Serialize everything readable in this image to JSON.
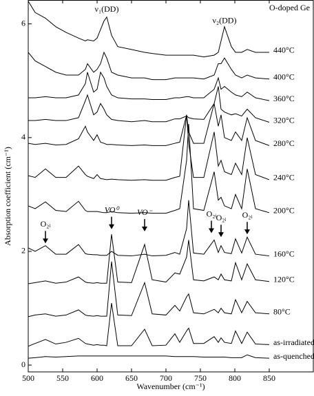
{
  "chart_data": {
    "type": "line",
    "title": "O-doped Ge",
    "x_label": "Wavenumber (cm⁻¹)",
    "y_label": "Absorption coefficient (cm⁻¹)",
    "xlim": [
      500,
      914
    ],
    "ylim": [
      -0.12,
      6.42
    ],
    "xticks": [
      500,
      550,
      600,
      650,
      700,
      750,
      800,
      850
    ],
    "yticks": [
      0,
      2,
      4,
      6
    ],
    "grid": false,
    "color": "#000000",
    "x": [
      500,
      510,
      525,
      540,
      555,
      573,
      583,
      586,
      595,
      600,
      605,
      610,
      614,
      621,
      630,
      650,
      669,
      680,
      700,
      713,
      720,
      730,
      733,
      740,
      755,
      770,
      776,
      780,
      785,
      795,
      801,
      810,
      818,
      830,
      850
    ],
    "series": [
      {
        "name": "as-quenched",
        "values": [
          0.12,
          0.13,
          0.15,
          0.14,
          0.15,
          0.16,
          0.16,
          0.16,
          0.16,
          0.16,
          0.16,
          0.16,
          0.16,
          0.16,
          0.16,
          0.16,
          0.16,
          0.16,
          0.16,
          0.15,
          0.15,
          0.15,
          0.15,
          0.15,
          0.14,
          0.14,
          0.14,
          0.14,
          0.14,
          0.13,
          0.13,
          0.13,
          0.18,
          0.13,
          0.12
        ]
      },
      {
        "name": "as-irradiated",
        "values": [
          0.33,
          0.38,
          0.45,
          0.37,
          0.4,
          0.47,
          0.38,
          0.37,
          0.35,
          0.36,
          0.35,
          0.35,
          0.34,
          1.09,
          0.34,
          0.34,
          0.63,
          0.34,
          0.35,
          0.55,
          0.4,
          0.6,
          0.65,
          0.38,
          0.38,
          0.5,
          0.4,
          0.48,
          0.4,
          0.38,
          0.6,
          0.38,
          0.58,
          0.37,
          0.36
        ]
      },
      {
        "name": "80°C",
        "values": [
          0.85,
          0.88,
          0.9,
          0.86,
          0.88,
          0.97,
          0.88,
          0.87,
          0.86,
          0.87,
          0.86,
          0.86,
          0.86,
          1.82,
          0.88,
          0.87,
          1.45,
          0.9,
          0.88,
          1.05,
          0.95,
          1.2,
          1.25,
          0.92,
          0.9,
          0.98,
          0.92,
          1.0,
          0.92,
          0.9,
          1.15,
          0.92,
          1.12,
          0.92,
          0.9
        ]
      },
      {
        "name": "120°C",
        "values": [
          1.43,
          1.45,
          1.48,
          1.44,
          1.46,
          1.55,
          1.46,
          1.45,
          1.44,
          1.45,
          1.44,
          1.44,
          1.44,
          2.3,
          1.46,
          1.45,
          2.12,
          1.5,
          1.46,
          1.62,
          1.6,
          1.9,
          2.2,
          1.5,
          1.48,
          1.55,
          1.5,
          1.6,
          1.5,
          1.48,
          1.8,
          1.5,
          1.78,
          1.5,
          1.47
        ]
      },
      {
        "name": "160°C",
        "values": [
          2.06,
          2.0,
          2.1,
          1.95,
          1.95,
          2.12,
          1.96,
          1.95,
          1.94,
          1.94,
          1.93,
          1.93,
          1.93,
          2.0,
          1.93,
          1.92,
          1.95,
          1.92,
          1.93,
          1.98,
          1.95,
          2.4,
          2.9,
          1.97,
          1.95,
          2.2,
          1.98,
          2.1,
          1.98,
          1.96,
          2.22,
          1.97,
          2.25,
          1.95,
          1.92
        ]
      },
      {
        "name": "200°C",
        "values": [
          2.8,
          2.75,
          2.87,
          2.72,
          2.7,
          2.88,
          2.72,
          2.7,
          2.7,
          2.7,
          2.69,
          2.68,
          2.68,
          2.7,
          2.68,
          2.67,
          2.68,
          2.67,
          2.67,
          2.72,
          2.75,
          3.6,
          4.24,
          2.75,
          2.72,
          3.4,
          2.9,
          2.95,
          2.8,
          2.75,
          3.0,
          2.75,
          3.45,
          2.75,
          2.68
        ]
      },
      {
        "name": "240°C",
        "values": [
          3.33,
          3.3,
          3.45,
          3.3,
          3.3,
          3.5,
          3.35,
          3.32,
          3.28,
          3.35,
          3.28,
          3.27,
          3.26,
          3.27,
          3.26,
          3.25,
          3.26,
          3.25,
          3.25,
          3.3,
          3.32,
          4.4,
          3.9,
          3.3,
          3.3,
          4.1,
          3.5,
          3.6,
          3.4,
          3.35,
          3.55,
          3.35,
          4.0,
          3.35,
          3.26
        ]
      },
      {
        "name": "280°C",
        "values": [
          3.9,
          3.88,
          3.9,
          3.87,
          3.88,
          3.98,
          4.2,
          4.1,
          3.95,
          4.05,
          3.92,
          3.9,
          3.88,
          3.88,
          3.87,
          3.86,
          3.87,
          3.86,
          3.86,
          3.9,
          3.92,
          4.4,
          4.1,
          3.9,
          3.9,
          4.6,
          4.2,
          4.4,
          4.0,
          3.95,
          4.1,
          3.95,
          4.35,
          3.95,
          3.86
        ]
      },
      {
        "name": "320°C",
        "values": [
          4.3,
          4.3,
          4.32,
          4.3,
          4.3,
          4.35,
          4.65,
          4.75,
          4.4,
          4.45,
          4.6,
          4.5,
          4.4,
          4.32,
          4.3,
          4.28,
          4.3,
          4.28,
          4.28,
          4.33,
          4.33,
          4.38,
          4.35,
          4.33,
          4.32,
          4.6,
          4.9,
          4.5,
          4.45,
          4.4,
          4.42,
          4.38,
          4.5,
          4.35,
          4.27
        ]
      },
      {
        "name": "360°C",
        "values": [
          4.7,
          4.7,
          4.72,
          4.7,
          4.7,
          4.75,
          4.95,
          5.15,
          4.8,
          4.85,
          5.15,
          5.05,
          4.9,
          4.75,
          4.7,
          4.68,
          4.68,
          4.67,
          4.67,
          4.7,
          4.7,
          4.72,
          4.72,
          4.7,
          4.7,
          4.85,
          5.05,
          4.85,
          4.9,
          4.8,
          4.75,
          4.72,
          4.8,
          4.7,
          4.65
        ]
      },
      {
        "name": "400°C",
        "values": [
          5.5,
          5.35,
          5.25,
          5.15,
          5.1,
          5.1,
          5.2,
          5.3,
          5.15,
          5.2,
          5.3,
          5.5,
          5.4,
          5.15,
          5.1,
          5.05,
          5.05,
          5.02,
          5.02,
          5.05,
          5.05,
          5.05,
          5.05,
          5.05,
          5.03,
          5.1,
          5.3,
          5.3,
          5.4,
          5.2,
          5.1,
          5.05,
          5.1,
          5.05,
          5.03
        ]
      },
      {
        "name": "440°C",
        "values": [
          6.4,
          6.2,
          6.1,
          5.95,
          5.85,
          5.75,
          5.7,
          5.72,
          5.7,
          5.75,
          5.9,
          6.05,
          6.12,
          5.8,
          5.6,
          5.55,
          5.5,
          5.48,
          5.45,
          5.45,
          5.45,
          5.45,
          5.45,
          5.45,
          5.42,
          5.45,
          5.5,
          5.7,
          5.95,
          5.6,
          5.5,
          5.5,
          5.55,
          5.5,
          5.5
        ]
      }
    ],
    "peak_labels": [
      {
        "text": "ν₁(DD)",
        "x": 614,
        "y": 6.25
      },
      {
        "text": "ν₂(DD)",
        "x": 785,
        "y": 6.05
      }
    ],
    "arrows": [
      {
        "text": "O₂ᵢ",
        "x": 525,
        "y": 2.14
      },
      {
        "text": "VO⁰",
        "x": 621,
        "y": 2.39
      },
      {
        "text": "VO⁻",
        "x": 669,
        "y": 2.35
      },
      {
        "text": "O₂ᵢ",
        "x": 766,
        "y": 2.32
      },
      {
        "text": "O₂ᵢ",
        "x": 780,
        "y": 2.25
      },
      {
        "text": "O₂ᵢ",
        "x": 818,
        "y": 2.3
      }
    ]
  }
}
